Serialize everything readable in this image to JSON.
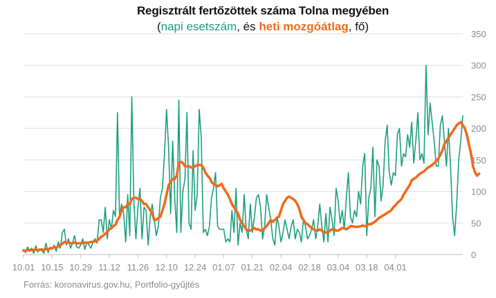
{
  "chart_data": {
    "type": "line",
    "title": "Regisztrált fertőzöttek száma Tolna megyében",
    "subtitle": {
      "open": "(",
      "daily_label": "napi esetszám",
      "sep": ", és ",
      "avg_label": "heti mozgóátlag",
      "close": ", fő)"
    },
    "source": "Forrás: koronavirus.gov.hu, Portfolio-gyűjtés",
    "ylim": [
      0,
      350
    ],
    "yticks": [
      0,
      50,
      100,
      150,
      200,
      250,
      300,
      350
    ],
    "x_tick_labels": [
      "10.01",
      "10.15",
      "10.29",
      "11.12",
      "11.26",
      "12.10",
      "12.24",
      "01.07",
      "01.21",
      "02.04",
      "02.18",
      "03.04",
      "03.18",
      "04.01"
    ],
    "x_tick_interval_days": 14,
    "colors": {
      "daily": "#1a9e7e",
      "avg": "#f06a1c",
      "grid": "#dddddd"
    },
    "grid": true,
    "series": [
      {
        "name": "napi esetszám",
        "values": [
          8,
          3,
          12,
          5,
          10,
          2,
          14,
          4,
          8,
          6,
          2,
          18,
          3,
          12,
          8,
          15,
          5,
          20,
          10,
          35,
          40,
          15,
          25,
          10,
          18,
          30,
          12,
          10,
          15,
          25,
          8,
          20,
          15,
          10,
          20,
          25,
          18,
          55,
          55,
          35,
          75,
          25,
          55,
          40,
          70,
          60,
          225,
          60,
          80,
          65,
          20,
          95,
          30,
          250,
          85,
          25,
          75,
          105,
          25,
          75,
          70,
          15,
          60,
          80,
          55,
          30,
          45,
          90,
          105,
          160,
          230,
          170,
          65,
          180,
          90,
          35,
          245,
          35,
          100,
          120,
          225,
          50,
          40,
          165,
          70,
          95,
          230,
          185,
          35,
          40,
          30,
          45,
          90,
          105,
          130,
          45,
          40,
          40,
          40,
          20,
          25,
          20,
          70,
          35,
          105,
          15,
          50,
          35,
          95,
          40,
          25,
          80,
          35,
          60,
          90,
          95,
          75,
          25,
          45,
          95,
          75,
          55,
          25,
          15,
          60,
          45,
          20,
          35,
          55,
          40,
          25,
          45,
          55,
          25,
          40,
          35,
          20,
          55,
          45,
          25,
          30,
          40,
          55,
          25,
          45,
          80,
          45,
          20,
          65,
          20,
          75,
          55,
          30,
          105,
          85,
          50,
          70,
          40,
          90,
          130,
          60,
          50,
          70,
          60,
          100,
          80,
          140,
          160,
          30,
          90,
          105,
          170,
          60,
          150,
          140,
          85,
          110,
          180,
          205,
          130,
          110,
          130,
          125,
          190,
          200,
          140,
          160,
          155,
          190,
          170,
          210,
          145,
          180,
          225,
          150,
          160,
          145,
          300,
          190,
          240,
          210,
          180,
          140,
          140,
          205,
          220,
          180,
          140,
          200,
          140,
          60,
          30,
          80,
          150,
          180,
          220
        ]
      },
      {
        "name": "heti mozgóátlag",
        "values": [
          6,
          6,
          7,
          7,
          8,
          7,
          8,
          7,
          8,
          8,
          7,
          9,
          8,
          10,
          10,
          12,
          11,
          13,
          15,
          17,
          20,
          19,
          19,
          18,
          18,
          19,
          18,
          18,
          18,
          18,
          19,
          19,
          19,
          20,
          20,
          21,
          22,
          25,
          28,
          30,
          33,
          36,
          40,
          42,
          45,
          47,
          55,
          60,
          70,
          75,
          75,
          80,
          80,
          88,
          90,
          90,
          88,
          88,
          85,
          80,
          80,
          75,
          70,
          65,
          55,
          55,
          58,
          60,
          70,
          80,
          95,
          110,
          115,
          120,
          120,
          125,
          145,
          147,
          145,
          140,
          140,
          140,
          138,
          138,
          140,
          142,
          142,
          142,
          138,
          130,
          125,
          122,
          115,
          112,
          110,
          108,
          110,
          112,
          105,
          100,
          95,
          88,
          80,
          75,
          70,
          65,
          55,
          50,
          45,
          40,
          38,
          38,
          40,
          42,
          40,
          40,
          38,
          38,
          42,
          45,
          50,
          55,
          52,
          55,
          58,
          60,
          70,
          80,
          85,
          90,
          92,
          90,
          88,
          85,
          80,
          72,
          60,
          55,
          50,
          48,
          45,
          42,
          40,
          38,
          38,
          40,
          38,
          35,
          35,
          35,
          38,
          40,
          40,
          38,
          38,
          40,
          42,
          42,
          40,
          42,
          45,
          45,
          44,
          44,
          44,
          45,
          46,
          45,
          46,
          48,
          48,
          50,
          52,
          55,
          58,
          60,
          62,
          64,
          66,
          68,
          70,
          75,
          78,
          82,
          85,
          88,
          95,
          100,
          105,
          110,
          118,
          120,
          122,
          125,
          128,
          130,
          132,
          135,
          138,
          140,
          142,
          145,
          148,
          152,
          158,
          165,
          175,
          180,
          185,
          190,
          195,
          200,
          205,
          208,
          210,
          205,
          200,
          190,
          175,
          160,
          140,
          130,
          125,
          128
        ]
      }
    ]
  }
}
